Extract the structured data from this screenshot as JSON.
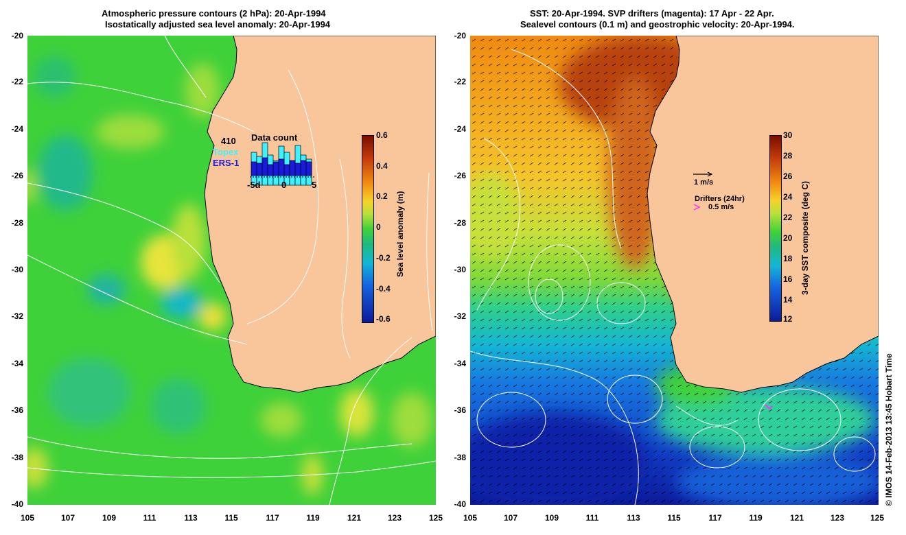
{
  "left": {
    "title1": "Atmospheric pressure contours (2 hPa): 20-Apr-1994",
    "title2": "Isostatically adjusted sea level anomaly: 20-Apr-1994",
    "colorbar_label": "Sea level anomaly (m)",
    "colorbar_ticks": [
      "0.6",
      "0.4",
      "0.2",
      "0",
      "-0.2",
      "-0.4",
      "-0.6"
    ],
    "data_count_number": "410",
    "data_count_title": "Data count",
    "topex_label": "Topex",
    "ers1_label": "ERS-1",
    "hist_ticks": [
      "-5d",
      "0",
      "5"
    ]
  },
  "right": {
    "title1": "SST: 20-Apr-1994. SVP drifters (magenta): 17 Apr - 22 Apr.",
    "title2": "Sealevel contours (0.1 m) and geostrophic velocity: 20-Apr-1994.",
    "colorbar_label": "3-day SST composite (deg C)",
    "colorbar_ticks": [
      "30",
      "28",
      "26",
      "24",
      "22",
      "20",
      "18",
      "16",
      "14",
      "12"
    ],
    "velocity_label": "1 m/s",
    "drifters_label": "Drifters (24hr)",
    "drifter_speed_label": "0.5 m/s"
  },
  "axes": {
    "y_ticks": [
      "-20",
      "-22",
      "-24",
      "-26",
      "-28",
      "-30",
      "-32",
      "-34",
      "-36",
      "-38",
      "-40"
    ],
    "x_ticks": [
      "105",
      "107",
      "109",
      "111",
      "113",
      "115",
      "117",
      "119",
      "121",
      "123",
      "125"
    ]
  },
  "credit": "© IMOS 14-Feb-2013 13:45 Hobart Time",
  "colors": {
    "land": "#f9c69b",
    "sla_ocean": "#3fd13a",
    "topex": "#3ff0ff",
    "ers1": "#1a1adc",
    "drifter": "#ff33ff"
  }
}
